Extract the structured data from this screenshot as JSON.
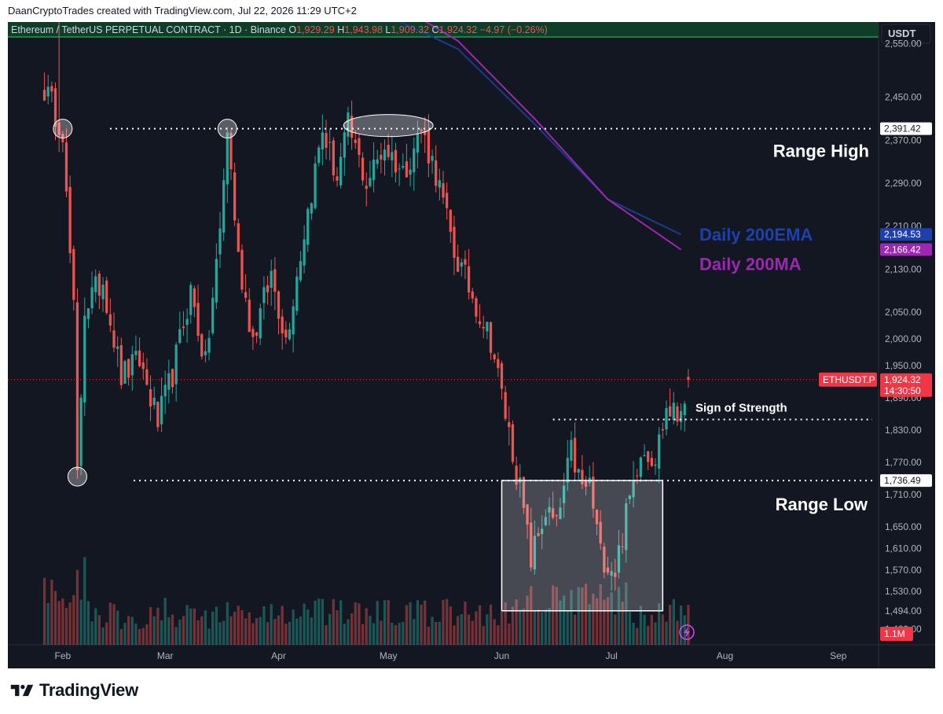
{
  "header": {
    "credit": "DaanCryptoTrades created with TradingView.com, Jul 22, 2026 11:29 UTC+2"
  },
  "legend": {
    "symbol": "Ethereum / TetherUS PERPETUAL CONTRACT · 1D · Binance",
    "o_label": "O",
    "o": "1,929.29",
    "h_label": "H",
    "h": "1,943.98",
    "l_label": "L",
    "l": "1,909.32",
    "c_label": "C",
    "c": "1,924.32",
    "change": "−4.97 (−0.26%)"
  },
  "price_axis": {
    "currency": "USDT",
    "ticks": [
      "2,550.00",
      "2,450.00",
      "2,370.00",
      "2,290.00",
      "2,210.00",
      "2,130.00",
      "2,050.00",
      "2,000.00",
      "1,950.00",
      "1,890.00",
      "1,830.00",
      "1,770.00",
      "1,710.00",
      "1,650.00",
      "1,610.00",
      "1,570.00",
      "1,530.00",
      "1,494.00",
      "1,460.00"
    ]
  },
  "price_labels": {
    "range_high": "2,391.42",
    "ema": "2,194.53",
    "ma": "2,166.42",
    "symbol_tag": "ETHUSDT.P",
    "current": "1,924.32",
    "countdown": "14:30:50",
    "range_low": "1,736.49",
    "volume": "1.1M"
  },
  "time_axis": {
    "ticks": [
      "Feb",
      "Mar",
      "Apr",
      "May",
      "Jun",
      "Jul",
      "Aug",
      "Sep"
    ]
  },
  "annotations": {
    "range_high": "Range High",
    "range_low": "Range Low",
    "ema_label": "Daily 200EMA",
    "ma_label": "Daily 200MA",
    "sos": "Sign of Strength"
  },
  "brand": {
    "name": "TradingView"
  },
  "colors": {
    "background": "#131722",
    "up": "#26a69a",
    "down": "#ef5350",
    "ema": "#1e3a8a",
    "ma": "#9c27b0",
    "ema_tag": "#1e40af",
    "ma_tag": "#9c27b0",
    "current_tag": "#f23645"
  },
  "chart_data": {
    "type": "candlestick",
    "symbol": "ETHUSDT.P",
    "interval": "1D",
    "x_range": [
      "2026-01-17",
      "2026-09-12"
    ],
    "y_range": [
      1460,
      2590
    ],
    "range_high": 2391.42,
    "range_low": 1736.49,
    "sign_of_strength": 1850,
    "current": 1924.32,
    "ema200_points": [
      [
        "2026-04-25",
        2620
      ],
      [
        "2026-05-20",
        2540
      ],
      [
        "2026-06-10",
        2400
      ],
      [
        "2026-06-30",
        2260
      ],
      [
        "2026-07-20",
        2194.53
      ]
    ],
    "ma200_points": [
      [
        "2026-05-04",
        2620
      ],
      [
        "2026-05-20",
        2555
      ],
      [
        "2026-06-10",
        2410
      ],
      [
        "2026-06-30",
        2260
      ],
      [
        "2026-07-20",
        2166.42
      ]
    ],
    "anchors": [
      [
        "2026-02-01",
        2391
      ],
      [
        "2026-02-02",
        2260
      ],
      [
        "2026-02-04",
        2050
      ],
      [
        "2026-02-05",
        1740
      ],
      [
        "2026-02-07",
        2060
      ],
      [
        "2026-02-12",
        2110
      ],
      [
        "2026-02-17",
        1930
      ],
      [
        "2026-02-22",
        1960
      ],
      [
        "2026-02-27",
        1845
      ],
      [
        "2026-03-03",
        1935
      ],
      [
        "2026-03-08",
        2090
      ],
      [
        "2026-03-12",
        1950
      ],
      [
        "2026-03-16",
        2200
      ],
      [
        "2026-03-18",
        2391
      ],
      [
        "2026-03-21",
        2150
      ],
      [
        "2026-03-25",
        2000
      ],
      [
        "2026-03-30",
        2120
      ],
      [
        "2026-04-03",
        2000
      ],
      [
        "2026-04-08",
        2200
      ],
      [
        "2026-04-13",
        2390
      ],
      [
        "2026-04-17",
        2300
      ],
      [
        "2026-04-20",
        2395
      ],
      [
        "2026-04-25",
        2290
      ],
      [
        "2026-04-30",
        2360
      ],
      [
        "2026-05-05",
        2310
      ],
      [
        "2026-05-10",
        2390
      ],
      [
        "2026-05-14",
        2310
      ],
      [
        "2026-05-19",
        2160
      ],
      [
        "2026-05-24",
        2080
      ],
      [
        "2026-05-29",
        2000
      ],
      [
        "2026-06-02",
        1860
      ],
      [
        "2026-06-06",
        1720
      ],
      [
        "2026-06-09",
        1590
      ],
      [
        "2026-06-13",
        1680
      ],
      [
        "2026-06-16",
        1650
      ],
      [
        "2026-06-20",
        1790
      ],
      [
        "2026-06-23",
        1720
      ],
      [
        "2026-06-25",
        1730
      ],
      [
        "2026-06-28",
        1600
      ],
      [
        "2026-07-02",
        1570
      ],
      [
        "2026-07-05",
        1670
      ],
      [
        "2026-07-09",
        1800
      ],
      [
        "2026-07-13",
        1780
      ],
      [
        "2026-07-16",
        1870
      ],
      [
        "2026-07-19",
        1855
      ],
      [
        "2026-07-22",
        1924
      ]
    ]
  }
}
